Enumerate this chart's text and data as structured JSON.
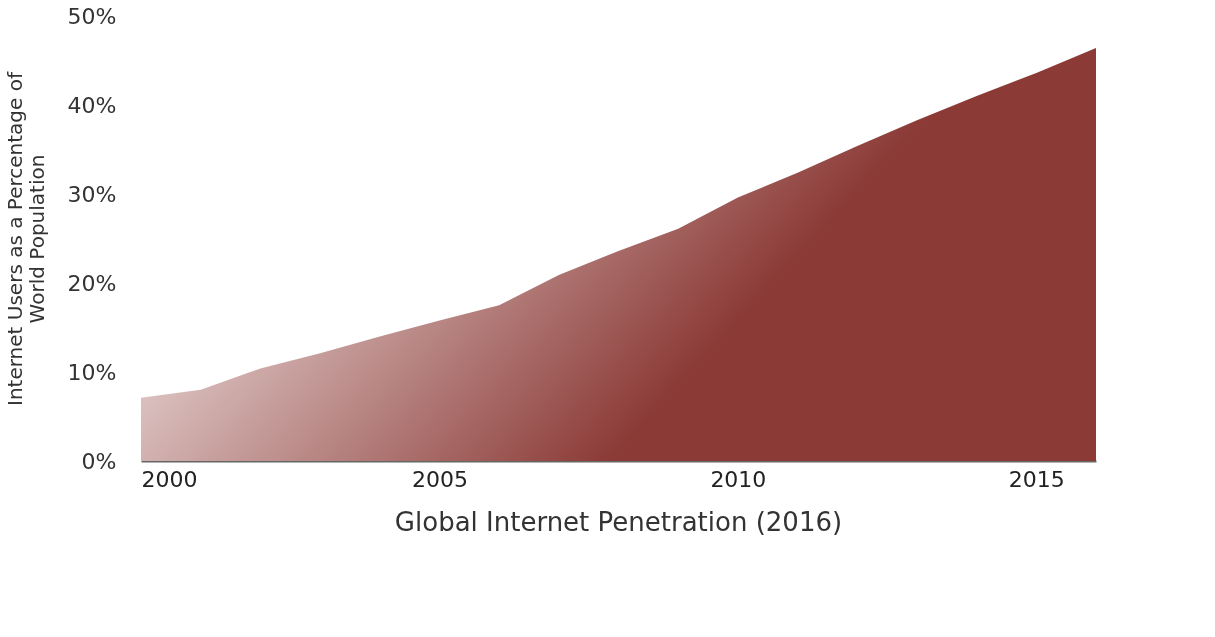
{
  "chart_data": {
    "type": "area",
    "title": "Global Internet Penetration (2016)",
    "ylabel": "Internet Users as a Percentage of World Population",
    "x": [
      2000,
      2001,
      2002,
      2003,
      2004,
      2005,
      2006,
      2007,
      2008,
      2009,
      2010,
      2011,
      2012,
      2013,
      2014,
      2015,
      2016
    ],
    "series": [
      {
        "color": "#8b3a36",
        "values": [
          7.1,
          8.0,
          10.4,
          12.1,
          14.0,
          15.8,
          17.5,
          20.9,
          23.6,
          26.1,
          29.6,
          32.4,
          35.4,
          38.3,
          41.0,
          43.6,
          46.4
        ]
      }
    ],
    "xlim": [
      2000,
      2016
    ],
    "xticks": [
      2000,
      2005,
      2010,
      2015
    ],
    "ylim": [
      0,
      50
    ],
    "yticks": [
      {
        "value": 0,
        "label": "0%"
      },
      {
        "value": 10,
        "label": "10%"
      },
      {
        "value": 20,
        "label": "20%"
      },
      {
        "value": 30,
        "label": "30%"
      },
      {
        "value": 40,
        "label": "40%"
      },
      {
        "value": 50,
        "label": "50%"
      }
    ],
    "grid": false
  }
}
